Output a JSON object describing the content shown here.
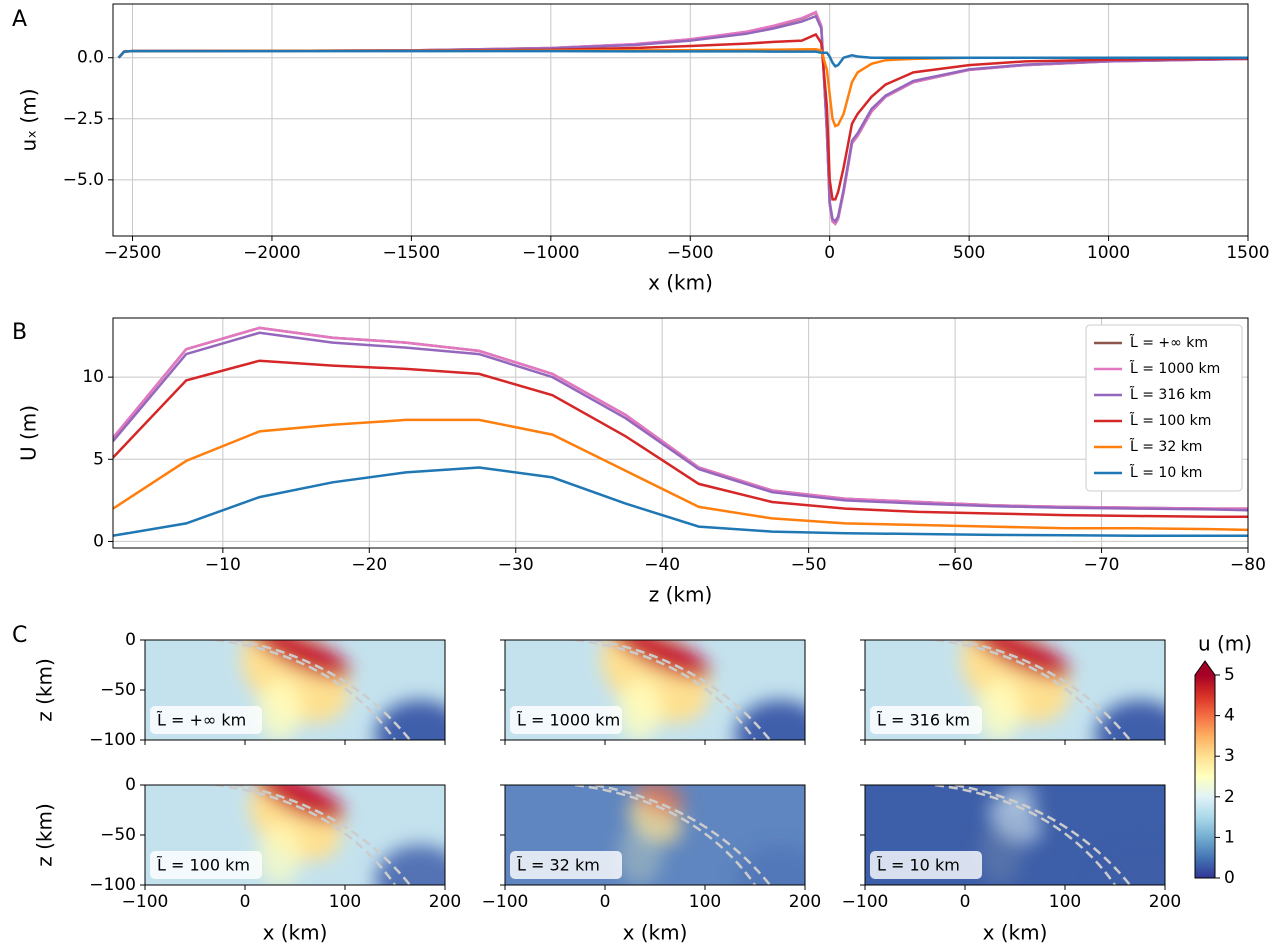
{
  "chart_data": [
    {
      "type": "line",
      "panel_label": "A",
      "x_label": "x (km)",
      "y_label": "uₓ (m)",
      "grid": true,
      "x": [
        -2550,
        -2530,
        -2500,
        -2000,
        -1500,
        -1000,
        -700,
        -500,
        -300,
        -200,
        -100,
        -50,
        -30,
        -10,
        0,
        10,
        20,
        30,
        50,
        80,
        100,
        150,
        200,
        300,
        500,
        700,
        1000,
        1500
      ],
      "series": [
        {
          "color": "#8c564b",
          "values": [
            0,
            0.25,
            0.27,
            0.28,
            0.3,
            0.4,
            0.55,
            0.75,
            1.05,
            1.3,
            1.6,
            1.85,
            1.3,
            -3,
            -6,
            -6.7,
            -6.8,
            -6.6,
            -5.5,
            -3.5,
            -3.2,
            -2.2,
            -1.6,
            -1.0,
            -0.5,
            -0.3,
            -0.15,
            -0.05
          ]
        },
        {
          "color": "#e377c2",
          "values": [
            0,
            0.25,
            0.27,
            0.28,
            0.3,
            0.4,
            0.56,
            0.76,
            1.06,
            1.31,
            1.62,
            1.87,
            1.3,
            -3,
            -6,
            -6.7,
            -6.8,
            -6.6,
            -5.5,
            -3.5,
            -3.2,
            -2.2,
            -1.6,
            -1.0,
            -0.5,
            -0.3,
            -0.15,
            -0.05
          ]
        },
        {
          "color": "#9467bd",
          "values": [
            0,
            0.25,
            0.27,
            0.28,
            0.3,
            0.38,
            0.52,
            0.7,
            0.98,
            1.2,
            1.48,
            1.7,
            1.2,
            -3,
            -5.9,
            -6.6,
            -6.7,
            -6.5,
            -5.4,
            -3.4,
            -3.1,
            -2.1,
            -1.55,
            -0.95,
            -0.48,
            -0.28,
            -0.14,
            -0.05
          ]
        },
        {
          "color": "#d62728",
          "values": [
            0,
            0.25,
            0.27,
            0.28,
            0.29,
            0.32,
            0.4,
            0.48,
            0.58,
            0.65,
            0.7,
            0.95,
            0.6,
            -2,
            -5,
            -5.8,
            -5.8,
            -5.5,
            -4.5,
            -2.7,
            -2.3,
            -1.6,
            -1.1,
            -0.6,
            -0.3,
            -0.15,
            -0.08,
            -0.03
          ]
        },
        {
          "color": "#ff7f0e",
          "values": [
            0,
            0.25,
            0.27,
            0.28,
            0.28,
            0.29,
            0.3,
            0.31,
            0.32,
            0.33,
            0.34,
            0.35,
            0.3,
            -0.5,
            -1.5,
            -2.5,
            -2.8,
            -2.75,
            -2.3,
            -1.0,
            -0.6,
            -0.25,
            -0.1,
            -0.05,
            0,
            0,
            0,
            0
          ]
        },
        {
          "color": "#1f77b4",
          "values": [
            0,
            0.25,
            0.27,
            0.27,
            0.27,
            0.27,
            0.26,
            0.26,
            0.26,
            0.25,
            0.25,
            0.25,
            0.2,
            0.2,
            0.05,
            -0.2,
            -0.35,
            -0.3,
            0.0,
            0.1,
            0.05,
            0,
            0,
            0,
            0,
            0,
            0,
            0
          ]
        }
      ],
      "xlim": [
        -2570,
        1500
      ],
      "ylim": [
        -7.3,
        2.2
      ],
      "xticks": [
        {
          "value": -2500,
          "label": "−2500"
        },
        {
          "value": -2000,
          "label": "−2000"
        },
        {
          "value": -1500,
          "label": "−1500"
        },
        {
          "value": -1000,
          "label": "−1000"
        },
        {
          "value": -500,
          "label": "−500"
        },
        0,
        500,
        1000,
        1500
      ],
      "yticks": [
        {
          "value": -5,
          "label": "−5.0"
        },
        {
          "value": -2.5,
          "label": "−2.5"
        },
        {
          "value": 0,
          "label": "0.0"
        }
      ]
    },
    {
      "type": "line",
      "panel_label": "B",
      "x_label": "z (km)",
      "y_label": "U (m)",
      "grid": true,
      "legend": "upper right",
      "x": [
        -2.5,
        -7.5,
        -12.5,
        -17.5,
        -22.5,
        -27.5,
        -32.5,
        -37.5,
        -42.5,
        -47.5,
        -52.5,
        -57.5,
        -62.5,
        -67.5,
        -72.5,
        -77.5,
        -80
      ],
      "series": [
        {
          "name": "L̃ = +∞ km",
          "color": "#8c564b",
          "values": [
            6.3,
            11.7,
            13.0,
            12.4,
            12.1,
            11.6,
            10.2,
            7.7,
            4.5,
            3.1,
            2.6,
            2.4,
            2.2,
            2.1,
            2.05,
            2.0,
            2.0
          ]
        },
        {
          "name": "L̃ = 1000 km",
          "color": "#e377c2",
          "values": [
            6.3,
            11.7,
            13.0,
            12.4,
            12.1,
            11.6,
            10.2,
            7.7,
            4.5,
            3.1,
            2.6,
            2.4,
            2.2,
            2.1,
            2.05,
            2.0,
            2.0
          ]
        },
        {
          "name": "L̃ = 316 km",
          "color": "#9467bd",
          "values": [
            6.1,
            11.4,
            12.7,
            12.1,
            11.8,
            11.4,
            10.0,
            7.5,
            4.4,
            3.0,
            2.5,
            2.3,
            2.15,
            2.05,
            2.0,
            1.95,
            1.9
          ]
        },
        {
          "name": "L̃ = 100 km",
          "color": "#d62728",
          "values": [
            5.1,
            9.8,
            11.0,
            10.7,
            10.5,
            10.2,
            8.9,
            6.4,
            3.5,
            2.4,
            2.0,
            1.8,
            1.7,
            1.6,
            1.55,
            1.5,
            1.5
          ]
        },
        {
          "name": "L̃ = 32 km",
          "color": "#ff7f0e",
          "values": [
            2.0,
            4.9,
            6.7,
            7.1,
            7.4,
            7.4,
            6.5,
            4.3,
            2.1,
            1.4,
            1.1,
            1.0,
            0.9,
            0.8,
            0.8,
            0.75,
            0.7
          ]
        },
        {
          "name": "L̃ = 10 km",
          "color": "#1f77b4",
          "values": [
            0.35,
            1.1,
            2.7,
            3.6,
            4.2,
            4.5,
            3.9,
            2.3,
            0.9,
            0.6,
            0.5,
            0.45,
            0.4,
            0.38,
            0.35,
            0.35,
            0.35
          ]
        }
      ],
      "xlim": [
        -2.5,
        -80
      ],
      "ylim": [
        -0.4,
        13.6
      ],
      "xticks": [
        {
          "value": -10,
          "label": "−10"
        },
        {
          "value": -20,
          "label": "−20"
        },
        {
          "value": -30,
          "label": "−30"
        },
        {
          "value": -40,
          "label": "−40"
        },
        {
          "value": -50,
          "label": "−50"
        },
        {
          "value": -60,
          "label": "−60"
        },
        {
          "value": -70,
          "label": "−70"
        },
        {
          "value": -80,
          "label": "−80"
        }
      ],
      "yticks": [
        0,
        5,
        10
      ]
    },
    {
      "type": "heatmap",
      "panel_label": "C",
      "x_label": "x (km)",
      "y_label": "z (km)",
      "xlim": [
        -100,
        200
      ],
      "ylim": [
        -100,
        0
      ],
      "xticks": [
        {
          "value": -100,
          "label": "−100"
        },
        0,
        100,
        200
      ],
      "yticks": [
        {
          "value": -100,
          "label": "−100"
        },
        {
          "value": -50,
          "label": "−50"
        },
        0
      ],
      "panels": [
        {
          "label": "L̃ = +∞ km"
        },
        {
          "label": "L̃ = 1000 km"
        },
        {
          "label": "L̃ = 316 km"
        },
        {
          "label": "L̃ = 100 km"
        },
        {
          "label": "L̃ = 32 km"
        },
        {
          "label": "L̃ = 10 km"
        }
      ],
      "colorbar": {
        "label": "u (m)",
        "lim": [
          0,
          5
        ],
        "ticks": [
          0,
          1,
          2,
          3,
          4,
          5
        ],
        "colors": [
          "#313695",
          "#4575b4",
          "#74add1",
          "#abd9e9",
          "#e0f3f8",
          "#ffffbf",
          "#fee090",
          "#fdae61",
          "#f46d43",
          "#d73027",
          "#a50026"
        ]
      }
    }
  ]
}
